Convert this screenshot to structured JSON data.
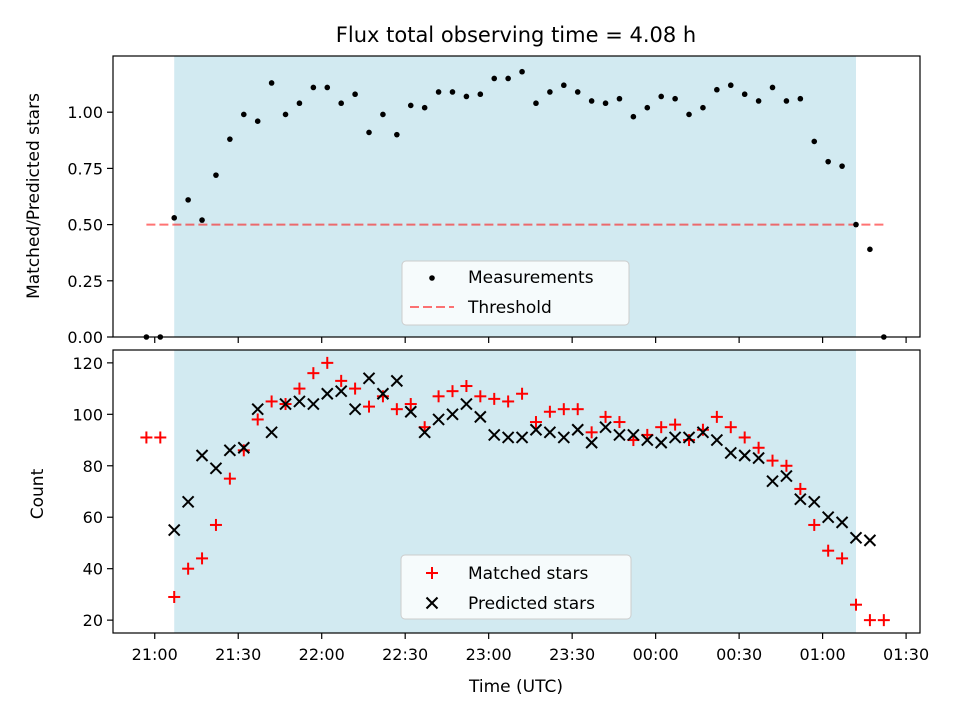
{
  "title": "Flux total observing time = 4.08 h",
  "colors": {
    "shade": "#add8e6",
    "threshold": "#ff0000",
    "measurement": "#000000",
    "matched": "#ff0000",
    "predicted": "#000000"
  },
  "chart_data": [
    {
      "type": "scatter",
      "title": "Flux total observing time = 4.08 h",
      "xlabel": "",
      "ylabel": "Matched/Predicted stars",
      "ylim": [
        0,
        1.25
      ],
      "yticks": [
        0.0,
        0.25,
        0.5,
        0.75,
        1.0
      ],
      "ytick_labels": [
        "0.00",
        "0.25",
        "0.50",
        "0.75",
        "1.00"
      ],
      "grid": false,
      "legend": "lower-center",
      "observing_window": [
        "21:07",
        "01:12"
      ],
      "threshold": {
        "name": "Threshold",
        "value": 0.5,
        "x_range": [
          "20:57",
          "01:22"
        ]
      },
      "series": [
        {
          "name": "Measurements",
          "x": [
            "20:57",
            "21:02",
            "21:07",
            "21:12",
            "21:17",
            "21:22",
            "21:27",
            "21:32",
            "21:37",
            "21:42",
            "21:47",
            "21:52",
            "21:57",
            "22:02",
            "22:07",
            "22:12",
            "22:17",
            "22:22",
            "22:27",
            "22:32",
            "22:37",
            "22:42",
            "22:47",
            "22:52",
            "22:57",
            "23:02",
            "23:07",
            "23:12",
            "23:17",
            "23:22",
            "23:27",
            "23:32",
            "23:37",
            "23:42",
            "23:47",
            "23:52",
            "23:57",
            "00:02",
            "00:07",
            "00:12",
            "00:17",
            "00:22",
            "00:27",
            "00:32",
            "00:37",
            "00:42",
            "00:47",
            "00:52",
            "00:57",
            "01:02",
            "01:07",
            "01:12",
            "01:17",
            "01:22"
          ],
          "y": [
            0.0,
            0.0,
            0.53,
            0.61,
            0.52,
            0.72,
            0.88,
            0.99,
            0.96,
            1.13,
            0.99,
            1.04,
            1.11,
            1.11,
            1.04,
            1.08,
            0.91,
            0.99,
            0.9,
            1.03,
            1.02,
            1.09,
            1.09,
            1.07,
            1.08,
            1.15,
            1.15,
            1.18,
            1.04,
            1.09,
            1.12,
            1.09,
            1.05,
            1.04,
            1.06,
            0.98,
            1.02,
            1.07,
            1.06,
            0.99,
            1.02,
            1.1,
            1.12,
            1.08,
            1.05,
            1.11,
            1.05,
            1.06,
            0.87,
            0.78,
            0.76,
            0.5,
            0.39,
            0.0
          ]
        }
      ]
    },
    {
      "type": "scatter",
      "title": "",
      "xlabel": "Time (UTC)",
      "ylabel": "Count",
      "ylim": [
        15,
        125
      ],
      "yticks": [
        20,
        40,
        60,
        80,
        100,
        120
      ],
      "ytick_labels": [
        "20",
        "40",
        "60",
        "80",
        "100",
        "120"
      ],
      "xticks": [
        "21:00",
        "21:30",
        "22:00",
        "22:30",
        "23:00",
        "23:30",
        "00:00",
        "00:30",
        "01:00",
        "01:30"
      ],
      "xtick_labels": [
        "21:00",
        "21:30",
        "22:00",
        "22:30",
        "23:00",
        "23:30",
        "00:00",
        "00:30",
        "01:00",
        "01:30"
      ],
      "grid": false,
      "legend": "lower-center",
      "observing_window": [
        "21:07",
        "01:12"
      ],
      "series": [
        {
          "name": "Matched stars",
          "marker": "plus",
          "x": [
            "20:57",
            "21:02",
            "21:07",
            "21:12",
            "21:17",
            "21:22",
            "21:27",
            "21:32",
            "21:37",
            "21:42",
            "21:47",
            "21:52",
            "21:57",
            "22:02",
            "22:07",
            "22:12",
            "22:17",
            "22:22",
            "22:27",
            "22:32",
            "22:37",
            "22:42",
            "22:47",
            "22:52",
            "22:57",
            "23:02",
            "23:07",
            "23:12",
            "23:17",
            "23:22",
            "23:27",
            "23:32",
            "23:37",
            "23:42",
            "23:47",
            "23:52",
            "23:57",
            "00:02",
            "00:07",
            "00:12",
            "00:17",
            "00:22",
            "00:27",
            "00:32",
            "00:37",
            "00:42",
            "00:47",
            "00:52",
            "00:57",
            "01:02",
            "01:07",
            "01:12",
            "01:17",
            "01:22"
          ],
          "y": [
            91,
            91,
            29,
            40,
            44,
            57,
            75,
            86,
            98,
            105,
            104,
            110,
            116,
            120,
            113,
            110,
            103,
            107,
            102,
            104,
            95,
            107,
            109,
            111,
            107,
            106,
            105,
            108,
            97,
            101,
            102,
            102,
            93,
            99,
            97,
            90,
            92,
            95,
            96,
            90,
            94,
            99,
            95,
            91,
            87,
            82,
            80,
            71,
            57,
            47,
            44,
            26,
            20,
            20
          ]
        },
        {
          "name": "Predicted stars",
          "marker": "x",
          "x": [
            "21:07",
            "21:12",
            "21:17",
            "21:22",
            "21:27",
            "21:32",
            "21:37",
            "21:42",
            "21:47",
            "21:52",
            "21:57",
            "22:02",
            "22:07",
            "22:12",
            "22:17",
            "22:22",
            "22:27",
            "22:32",
            "22:37",
            "22:42",
            "22:47",
            "22:52",
            "22:57",
            "23:02",
            "23:07",
            "23:12",
            "23:17",
            "23:22",
            "23:27",
            "23:32",
            "23:37",
            "23:42",
            "23:47",
            "23:52",
            "23:57",
            "00:02",
            "00:07",
            "00:12",
            "00:17",
            "00:22",
            "00:27",
            "00:32",
            "00:37",
            "00:42",
            "00:47",
            "00:52",
            "00:57",
            "01:02",
            "01:07",
            "01:12",
            "01:17"
          ],
          "y": [
            55,
            66,
            84,
            79,
            86,
            87,
            102,
            93,
            104,
            105,
            104,
            108,
            109,
            102,
            114,
            108,
            113,
            101,
            93,
            98,
            100,
            104,
            99,
            92,
            91,
            91,
            94,
            93,
            91,
            94,
            89,
            95,
            92,
            92,
            90,
            89,
            91,
            91,
            93,
            90,
            85,
            84,
            83,
            74,
            76,
            67,
            66,
            60,
            58,
            52,
            51
          ]
        }
      ]
    }
  ]
}
